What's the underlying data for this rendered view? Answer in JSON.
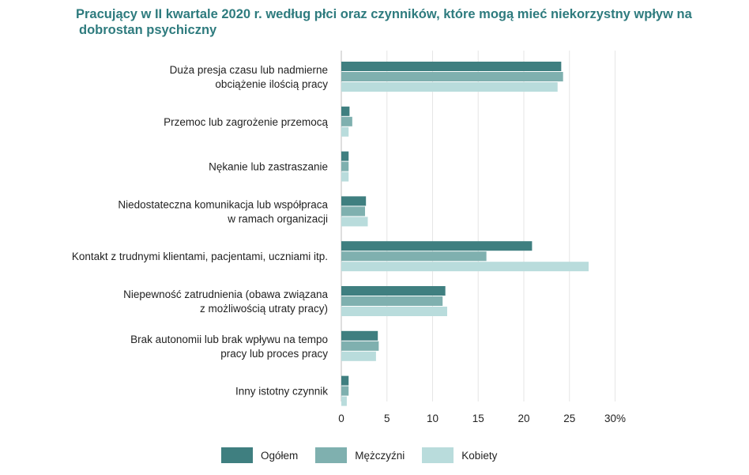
{
  "chart_data": {
    "type": "bar",
    "orientation": "horizontal",
    "title": "Pracujący w II kwartale 2020 r. według płci oraz czynników, które mogą mieć niekorzystny wpływ na dobrostan psychiczny",
    "title_lines": [
      "Pracujący w II kwartale 2020 r. według płci oraz czynników, które mogą mieć niekorzystny wpływ na",
      "dobrostan psychiczny"
    ],
    "categories": [
      [
        "Duża presja czasu lub nadmierne",
        "obciążenie ilością pracy"
      ],
      [
        "Przemoc lub zagrożenie przemocą"
      ],
      [
        "Nękanie lub zastraszanie"
      ],
      [
        "Niedostateczna komunikacja lub współpraca",
        "w ramach organizacji"
      ],
      [
        "Kontakt z trudnymi klientami, pacjentami, uczniami itp."
      ],
      [
        "Niepewność zatrudnienia (obawa związana",
        "z możliwością utraty pracy)"
      ],
      [
        "Brak autonomii lub brak wpływu na tempo",
        "pracy lub proces pracy"
      ],
      [
        "Inny istotny czynnik"
      ]
    ],
    "series": [
      {
        "name": "Ogółem",
        "color": "#3f7f80",
        "values": [
          24.1,
          0.9,
          0.8,
          2.7,
          20.9,
          11.4,
          4.0,
          0.8
        ]
      },
      {
        "name": "Mężczyźni",
        "color": "#7fb0af",
        "values": [
          24.3,
          1.2,
          0.8,
          2.6,
          15.9,
          11.1,
          4.1,
          0.8
        ]
      },
      {
        "name": "Kobiety",
        "color": "#b9dcdc",
        "values": [
          23.7,
          0.8,
          0.8,
          2.9,
          27.1,
          11.6,
          3.8,
          0.6
        ]
      }
    ],
    "xticks": [
      "0",
      "5",
      "10",
      "15",
      "20",
      "25",
      "30%"
    ],
    "xlim": [
      0,
      30
    ],
    "xlabel": "",
    "ylabel": "",
    "grid": "vertical",
    "legend_position": "bottom"
  }
}
